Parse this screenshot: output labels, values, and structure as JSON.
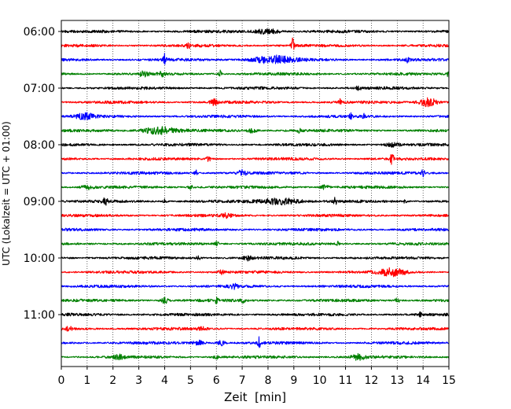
{
  "chart_data": {
    "type": "line",
    "title": "",
    "xlabel": "Zeit  [min]",
    "ylabel": "UTC (Lokalzeit = UTC + 01:00)",
    "xlim": [
      0,
      15
    ],
    "x_ticks": [
      0,
      1,
      2,
      3,
      4,
      5,
      6,
      7,
      8,
      9,
      10,
      11,
      12,
      13,
      14,
      15
    ],
    "y_tick_labels": [
      "06:00",
      "07:00",
      "08:00",
      "09:00",
      "10:00",
      "11:00"
    ],
    "grid": "vertical-dotted",
    "trace_interval_minutes": 15,
    "color_cycle": [
      "#000000",
      "#ff0000",
      "#0000ff",
      "#008000"
    ],
    "traces": [
      {
        "start": "06:00",
        "events": [
          {
            "t": 8.0,
            "amp": 0.35,
            "w": 0.5
          }
        ]
      },
      {
        "start": "06:15",
        "events": [
          {
            "t": 4.9,
            "amp": 0.3,
            "w": 0.08
          },
          {
            "t": 8.95,
            "amp": 1.0,
            "w": 0.06
          }
        ]
      },
      {
        "start": "06:30",
        "events": [
          {
            "t": 4.0,
            "amp": 0.8,
            "w": 0.06
          },
          {
            "t": 8.2,
            "amp": 0.55,
            "w": 0.8
          },
          {
            "t": 13.4,
            "amp": 0.3,
            "w": 0.08
          }
        ]
      },
      {
        "start": "06:45",
        "events": [
          {
            "t": 3.2,
            "amp": 0.35,
            "w": 0.2
          },
          {
            "t": 3.9,
            "amp": 0.3,
            "w": 0.1
          },
          {
            "t": 6.15,
            "amp": 0.8,
            "w": 0.05
          },
          {
            "t": 15.0,
            "amp": 0.5,
            "w": 0.08
          }
        ]
      },
      {
        "start": "07:00",
        "events": [
          {
            "t": 11.5,
            "amp": 0.3,
            "w": 0.1
          }
        ]
      },
      {
        "start": "07:15",
        "events": [
          {
            "t": 5.9,
            "amp": 0.4,
            "w": 0.15
          },
          {
            "t": 10.8,
            "amp": 0.4,
            "w": 0.06
          },
          {
            "t": 14.2,
            "amp": 0.65,
            "w": 0.35
          }
        ]
      },
      {
        "start": "07:30",
        "events": [
          {
            "t": 0.9,
            "amp": 0.45,
            "w": 0.35
          },
          {
            "t": 11.2,
            "amp": 0.55,
            "w": 0.05
          },
          {
            "t": 11.7,
            "amp": 0.3,
            "w": 0.05
          }
        ]
      },
      {
        "start": "07:45",
        "events": [
          {
            "t": 3.8,
            "amp": 0.5,
            "w": 0.7
          },
          {
            "t": 7.4,
            "amp": 0.3,
            "w": 0.2
          },
          {
            "t": 9.2,
            "amp": 0.25,
            "w": 0.1
          }
        ]
      },
      {
        "start": "08:00",
        "events": [
          {
            "t": 12.8,
            "amp": 0.25,
            "w": 0.3
          }
        ]
      },
      {
        "start": "08:15",
        "events": [
          {
            "t": 5.7,
            "amp": 0.3,
            "w": 0.1
          },
          {
            "t": 12.8,
            "amp": 1.0,
            "w": 0.06
          }
        ]
      },
      {
        "start": "08:30",
        "events": [
          {
            "t": 5.2,
            "amp": 0.45,
            "w": 0.06
          },
          {
            "t": 7.0,
            "amp": 0.45,
            "w": 0.15
          },
          {
            "t": 14.0,
            "amp": 0.45,
            "w": 0.06
          }
        ]
      },
      {
        "start": "08:45",
        "events": [
          {
            "t": 1.0,
            "amp": 0.3,
            "w": 0.2
          },
          {
            "t": 5.0,
            "amp": 0.3,
            "w": 0.1
          },
          {
            "t": 10.2,
            "amp": 0.3,
            "w": 0.15
          }
        ]
      },
      {
        "start": "09:00",
        "events": [
          {
            "t": 1.7,
            "amp": 0.45,
            "w": 0.1
          },
          {
            "t": 4.0,
            "amp": 0.4,
            "w": 0.06
          },
          {
            "t": 8.5,
            "amp": 0.45,
            "w": 0.8
          },
          {
            "t": 10.6,
            "amp": 0.6,
            "w": 0.06
          },
          {
            "t": 13.3,
            "amp": 0.35,
            "w": 0.05
          }
        ]
      },
      {
        "start": "09:15",
        "events": [
          {
            "t": 6.4,
            "amp": 0.25,
            "w": 0.2
          }
        ]
      },
      {
        "start": "09:30",
        "events": []
      },
      {
        "start": "09:45",
        "events": [
          {
            "t": 6.0,
            "amp": 0.3,
            "w": 0.1
          },
          {
            "t": 10.7,
            "amp": 0.3,
            "w": 0.06
          }
        ]
      },
      {
        "start": "10:00",
        "events": [
          {
            "t": 5.3,
            "amp": 0.25,
            "w": 0.1
          },
          {
            "t": 7.2,
            "amp": 0.3,
            "w": 0.15
          }
        ]
      },
      {
        "start": "10:15",
        "events": [
          {
            "t": 6.2,
            "amp": 0.3,
            "w": 0.1
          },
          {
            "t": 12.8,
            "amp": 0.5,
            "w": 0.5
          }
        ]
      },
      {
        "start": "10:30",
        "events": [
          {
            "t": 6.7,
            "amp": 0.3,
            "w": 0.15
          }
        ]
      },
      {
        "start": "10:45",
        "events": [
          {
            "t": 4.0,
            "amp": 0.4,
            "w": 0.15
          },
          {
            "t": 6.0,
            "amp": 0.45,
            "w": 0.06
          },
          {
            "t": 7.0,
            "amp": 0.3,
            "w": 0.1
          },
          {
            "t": 13.0,
            "amp": 0.3,
            "w": 0.1
          }
        ]
      },
      {
        "start": "11:00",
        "events": [
          {
            "t": 13.9,
            "amp": 0.3,
            "w": 0.05
          }
        ]
      },
      {
        "start": "11:15",
        "events": [
          {
            "t": 0.3,
            "amp": 0.3,
            "w": 0.1
          },
          {
            "t": 5.5,
            "amp": 0.2,
            "w": 0.2
          }
        ]
      },
      {
        "start": "11:30",
        "events": [
          {
            "t": 5.3,
            "amp": 0.35,
            "w": 0.2
          },
          {
            "t": 6.2,
            "amp": 0.35,
            "w": 0.15
          },
          {
            "t": 7.65,
            "amp": 0.85,
            "w": 0.06
          }
        ]
      },
      {
        "start": "11:45",
        "events": [
          {
            "t": 2.2,
            "amp": 0.3,
            "w": 0.2
          },
          {
            "t": 6.0,
            "amp": 0.25,
            "w": 0.1
          },
          {
            "t": 11.5,
            "amp": 0.4,
            "w": 0.25
          }
        ]
      }
    ]
  }
}
